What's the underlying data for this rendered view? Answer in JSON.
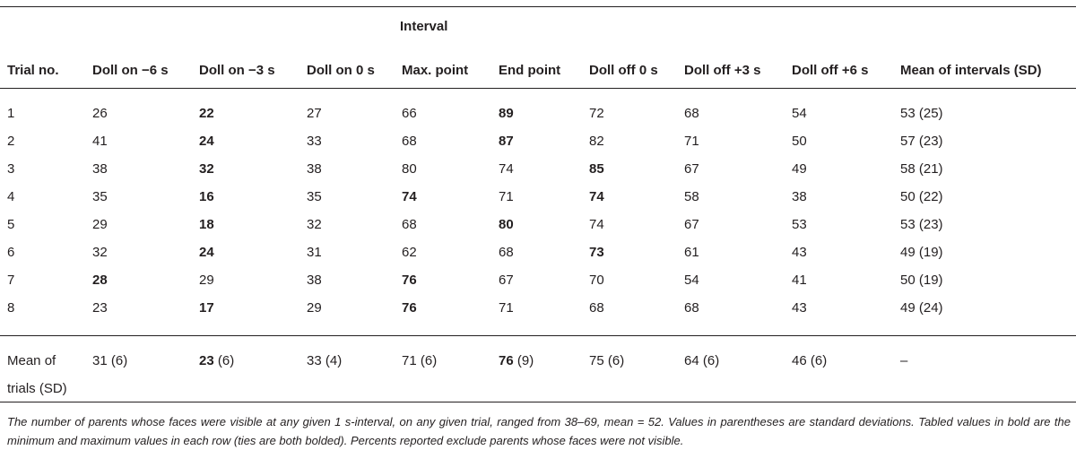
{
  "table": {
    "group_header": "Interval",
    "columns": [
      "Trial no.",
      "Doll on −6 s",
      "Doll on −3 s",
      "Doll on 0 s",
      "Max. point",
      "End point",
      "Doll off 0 s",
      "Doll off +3 s",
      "Doll off +6 s",
      "Mean of intervals (SD)"
    ],
    "rows": [
      {
        "trial": "1",
        "values": [
          "26",
          "22",
          "27",
          "66",
          "89",
          "72",
          "68",
          "54"
        ],
        "bold": [
          1,
          4
        ],
        "mean": "53 (25)"
      },
      {
        "trial": "2",
        "values": [
          "41",
          "24",
          "33",
          "68",
          "87",
          "82",
          "71",
          "50"
        ],
        "bold": [
          1,
          4
        ],
        "mean": "57 (23)"
      },
      {
        "trial": "3",
        "values": [
          "38",
          "32",
          "38",
          "80",
          "74",
          "85",
          "67",
          "49"
        ],
        "bold": [
          1,
          5
        ],
        "mean": "58 (21)"
      },
      {
        "trial": "4",
        "values": [
          "35",
          "16",
          "35",
          "74",
          "71",
          "74",
          "58",
          "38"
        ],
        "bold": [
          1,
          3,
          5
        ],
        "mean": "50 (22)"
      },
      {
        "trial": "5",
        "values": [
          "29",
          "18",
          "32",
          "68",
          "80",
          "74",
          "67",
          "53"
        ],
        "bold": [
          1,
          4
        ],
        "mean": "53 (23)"
      },
      {
        "trial": "6",
        "values": [
          "32",
          "24",
          "31",
          "62",
          "68",
          "73",
          "61",
          "43"
        ],
        "bold": [
          1,
          5
        ],
        "mean": "49 (19)"
      },
      {
        "trial": "7",
        "values": [
          "28",
          "29",
          "38",
          "76",
          "67",
          "70",
          "54",
          "41"
        ],
        "bold": [
          0,
          3
        ],
        "mean": "50 (19)"
      },
      {
        "trial": "8",
        "values": [
          "23",
          "17",
          "29",
          "76",
          "71",
          "68",
          "68",
          "43"
        ],
        "bold": [
          1,
          3
        ],
        "mean": "49 (24)"
      }
    ],
    "mean_row": {
      "label_line1": "Mean of",
      "label_line2": "trials (SD)",
      "values": [
        {
          "num": "31",
          "sd": " (6)",
          "bold": false
        },
        {
          "num": "23",
          "sd": " (6)",
          "bold": true
        },
        {
          "num": "33",
          "sd": " (4)",
          "bold": false
        },
        {
          "num": "71",
          "sd": " (6)",
          "bold": false
        },
        {
          "num": "76",
          "sd": " (9)",
          "bold": true
        },
        {
          "num": "75",
          "sd": " (6)",
          "bold": false
        },
        {
          "num": "64",
          "sd": " (6)",
          "bold": false
        },
        {
          "num": "46",
          "sd": " (6)",
          "bold": false
        }
      ],
      "mean": "–"
    }
  },
  "footnote": "The number of parents whose faces were visible at any given 1 s-interval, on any given trial, ranged from 38–69, mean = 52. Values in parentheses are standard deviations. Tabled values in bold are the minimum and maximum values in each row (ties are both bolded). Percents reported exclude parents whose faces were not visible."
}
